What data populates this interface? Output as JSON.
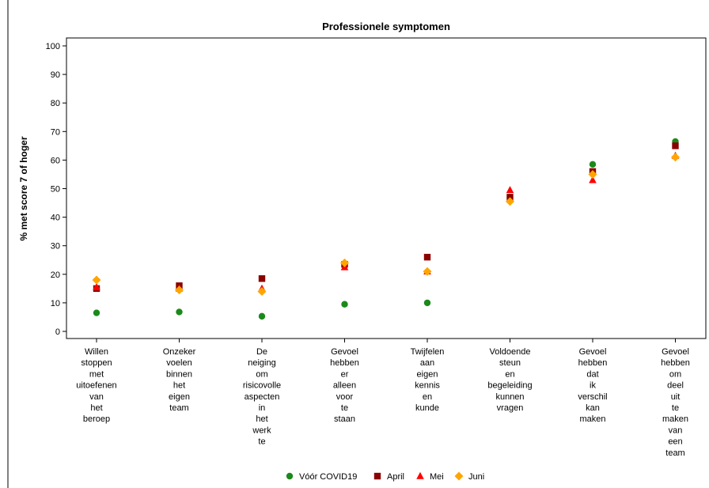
{
  "chart_data": {
    "type": "scatter",
    "title": "Professionele symptomen",
    "ylabel": "% met score 7 of hoger",
    "xlabel": "",
    "ylim": [
      0,
      100
    ],
    "yticks": [
      0,
      10,
      20,
      30,
      40,
      50,
      60,
      70,
      80,
      90,
      100
    ],
    "grid": false,
    "legend_position": "bottom",
    "categories": [
      [
        "Willen",
        "stoppen",
        "met",
        "uitoefenen",
        "van",
        "het",
        "beroep"
      ],
      [
        "Onzeker",
        "voelen",
        "binnen",
        "het",
        "eigen",
        "team"
      ],
      [
        "De",
        "neiging",
        "om",
        "risicovolle",
        "aspecten",
        "in",
        "het",
        "werk",
        "te"
      ],
      [
        "Gevoel",
        "hebben",
        "er",
        "alleen",
        "voor",
        "te",
        "staan"
      ],
      [
        "Twijfelen",
        "aan",
        "eigen",
        "kennis",
        "en",
        "kunde"
      ],
      [
        "Voldoende",
        "steun",
        "en",
        "begeleiding",
        "kunnen",
        "vragen"
      ],
      [
        "Gevoel",
        "hebben",
        "dat",
        "ik",
        "verschil",
        "kan",
        "maken"
      ],
      [
        "Gevoel",
        "hebben",
        "om",
        "deel",
        "uit",
        "te",
        "maken",
        "van",
        "een",
        "team"
      ]
    ],
    "series": [
      {
        "name": "Vóór COVID19",
        "marker": "circle",
        "color": "#1a8a1a",
        "values": [
          6.5,
          6.8,
          5.3,
          9.5,
          10,
          47,
          58.5,
          66.5
        ]
      },
      {
        "name": "April",
        "marker": "square",
        "color": "#8b0000",
        "values": [
          15,
          16,
          18.5,
          23.5,
          26,
          47,
          56,
          65
        ]
      },
      {
        "name": "Mei",
        "marker": "triangle",
        "color": "#ff0000",
        "values": [
          15.5,
          15,
          15,
          22.5,
          21,
          49.5,
          53,
          61.5
        ]
      },
      {
        "name": "Juni",
        "marker": "diamond",
        "color": "#ffa500",
        "values": [
          18,
          14.5,
          14,
          24,
          21,
          45.5,
          55,
          61
        ]
      }
    ]
  }
}
